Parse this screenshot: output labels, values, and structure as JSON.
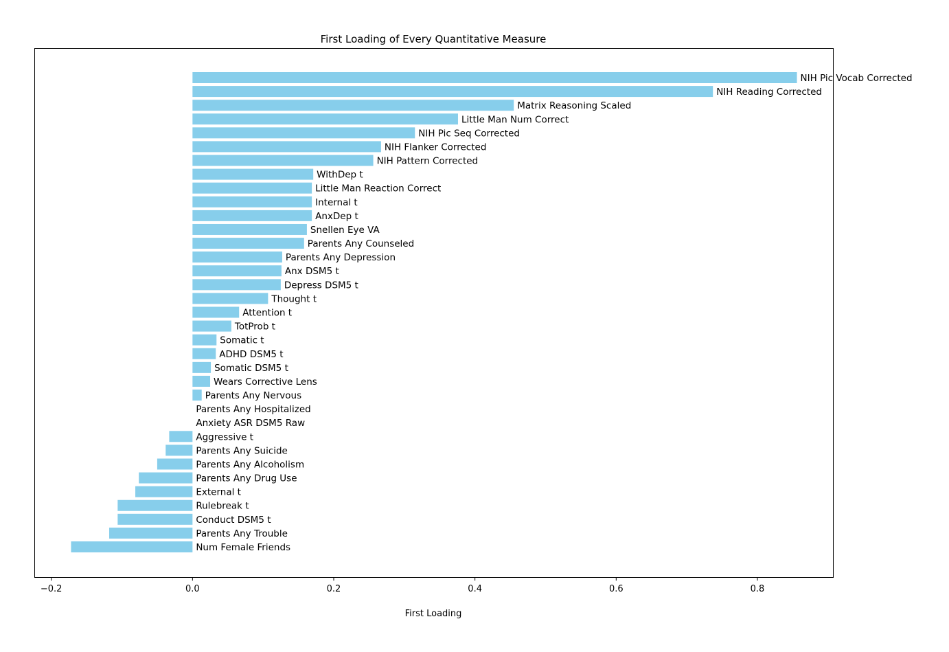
{
  "chart_data": {
    "type": "bar",
    "orientation": "horizontal",
    "title": "First Loading of Every Quantitative Measure",
    "xlabel": "First Loading",
    "ylabel": "",
    "xlim": [
      -0.224,
      0.907
    ],
    "xticks": [
      -0.2,
      0.0,
      0.2,
      0.4,
      0.6,
      0.8
    ],
    "xtick_labels": [
      "−0.2",
      "0.0",
      "0.2",
      "0.4",
      "0.6",
      "0.8"
    ],
    "grid": false,
    "legend": "none",
    "bar_color": "#87CEEB",
    "categories": [
      "NIH Pic Vocab Corrected",
      "NIH Reading Corrected",
      "Matrix Reasoning Scaled",
      "Little Man Num Correct",
      "NIH Pic Seq Corrected",
      "NIH Flanker Corrected",
      "NIH Pattern Corrected",
      "WithDep t",
      "Little Man Reaction Correct",
      "Internal t",
      "AnxDep t",
      "Snellen Eye VA",
      "Parents Any Counseled",
      "Parents Any Depression",
      "Anx DSM5 t",
      "Depress DSM5 t",
      "Thought t",
      "Attention t",
      "TotProb t",
      "Somatic t",
      "ADHD DSM5 t",
      "Somatic DSM5 t",
      "Wears Corrective Lens",
      "Parents Any Nervous",
      "Parents Any Hospitalized",
      "Anxiety ASR DSM5 Raw",
      "Aggressive t",
      "Parents Any Suicide",
      "Parents Any Alcoholism",
      "Parents Any Drug Use",
      "External t",
      "Rulebreak t",
      "Conduct DSM5 t",
      "Parents Any Trouble",
      "Num Female Friends"
    ],
    "values": [
      0.856,
      0.737,
      0.455,
      0.376,
      0.315,
      0.267,
      0.256,
      0.171,
      0.169,
      0.169,
      0.169,
      0.162,
      0.158,
      0.127,
      0.126,
      0.125,
      0.107,
      0.066,
      0.055,
      0.034,
      0.033,
      0.026,
      0.025,
      0.013,
      0.0,
      0.0,
      -0.033,
      -0.038,
      -0.05,
      -0.076,
      -0.081,
      -0.106,
      -0.106,
      -0.118,
      -0.172
    ]
  }
}
